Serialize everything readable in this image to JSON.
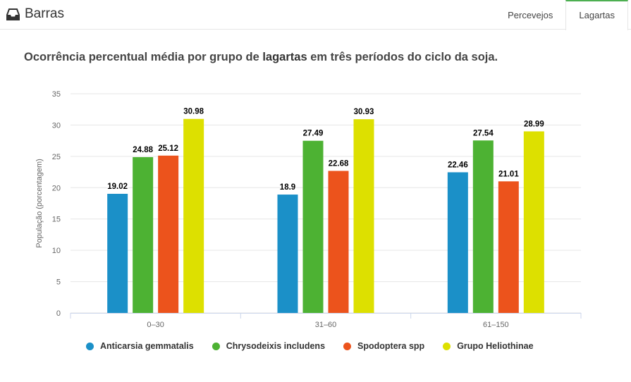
{
  "header": {
    "title": "Barras",
    "icon": "inbox-tray-icon",
    "tabs": [
      {
        "label": "Percevejos",
        "active": false
      },
      {
        "label": "Lagartas",
        "active": true
      }
    ],
    "accent_color": "#4caf50"
  },
  "chart_data": {
    "type": "bar",
    "title_prefix": "Ocorrência percentual média por grupo de ",
    "title_emphasis": "lagartas",
    "title_suffix": " em três períodos do ciclo da soja.",
    "xlabel": "",
    "ylabel": "População (porcentagem)",
    "ylim": [
      0,
      35
    ],
    "yticks": [
      0,
      5,
      10,
      15,
      20,
      25,
      30,
      35
    ],
    "grid": true,
    "legend_position": "bottom",
    "categories": [
      "0–30",
      "31–60",
      "61–150"
    ],
    "series": [
      {
        "name": "Anticarsia gemmatalis",
        "color": "#1b90c8",
        "values": [
          19.02,
          18.9,
          22.46
        ]
      },
      {
        "name": "Chrysodeixis includens",
        "color": "#4db233",
        "values": [
          24.88,
          27.49,
          27.54
        ]
      },
      {
        "name": "Spodoptera spp",
        "color": "#ec531c",
        "values": [
          25.12,
          22.68,
          21.01
        ]
      },
      {
        "name": "Grupo Heliothinae",
        "color": "#dde000",
        "values": [
          30.98,
          30.93,
          28.99
        ]
      }
    ]
  }
}
